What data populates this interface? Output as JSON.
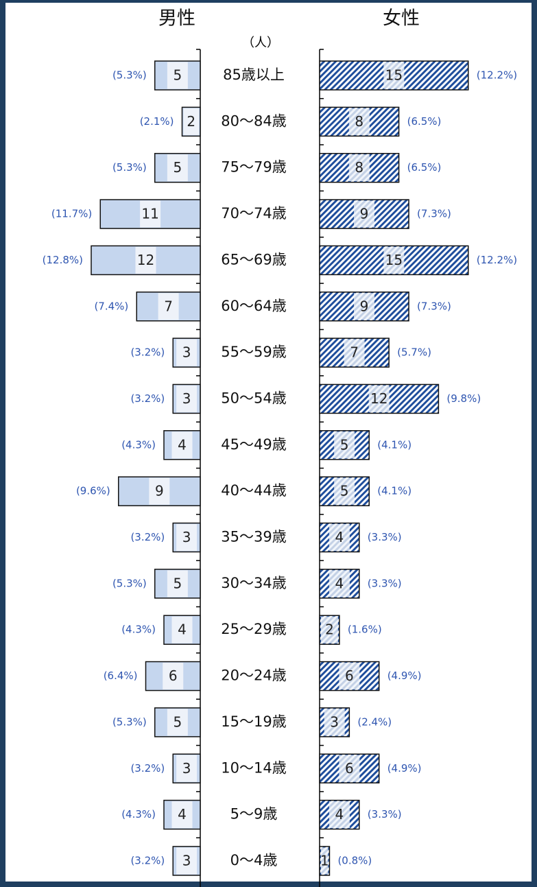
{
  "chart_data": {
    "type": "bar",
    "orientation": "horizontal",
    "unit_label": "（人）",
    "categories": [
      "85歳以上",
      "80～84歳",
      "75～79歳",
      "70～74歳",
      "65～69歳",
      "60～64歳",
      "55～59歳",
      "50～54歳",
      "45～49歳",
      "40～44歳",
      "35～39歳",
      "30～34歳",
      "25～29歳",
      "20～24歳",
      "15～19歳",
      "10～14歳",
      "5～9歳",
      "0～4歳"
    ],
    "series": [
      {
        "name": "男性",
        "color": "#c5d6ee",
        "values": [
          5,
          2,
          5,
          11,
          12,
          7,
          3,
          3,
          4,
          9,
          3,
          5,
          4,
          6,
          5,
          3,
          4,
          3
        ],
        "percent_labels": [
          "(5.3%)",
          "(2.1%)",
          "(5.3%)",
          "(11.7%)",
          "(12.8%)",
          "(7.4%)",
          "(3.2%)",
          "(3.2%)",
          "(4.3%)",
          "(9.6%)",
          "(3.2%)",
          "(5.3%)",
          "(4.3%)",
          "(6.4%)",
          "(5.3%)",
          "(3.2%)",
          "(4.3%)",
          "(3.2%)"
        ]
      },
      {
        "name": "女性",
        "color": "#1f4e9c",
        "values": [
          15,
          8,
          8,
          9,
          15,
          9,
          7,
          12,
          5,
          5,
          4,
          4,
          2,
          6,
          3,
          6,
          4,
          1
        ],
        "percent_labels": [
          "(12.2%)",
          "(6.5%)",
          "(6.5%)",
          "(7.3%)",
          "(12.2%)",
          "(7.3%)",
          "(5.7%)",
          "(9.8%)",
          "(4.1%)",
          "(4.1%)",
          "(3.3%)",
          "(3.3%)",
          "(1.6%)",
          "(4.9%)",
          "(2.4%)",
          "(4.9%)",
          "(3.3%)",
          "(0.8%)"
        ]
      }
    ]
  }
}
